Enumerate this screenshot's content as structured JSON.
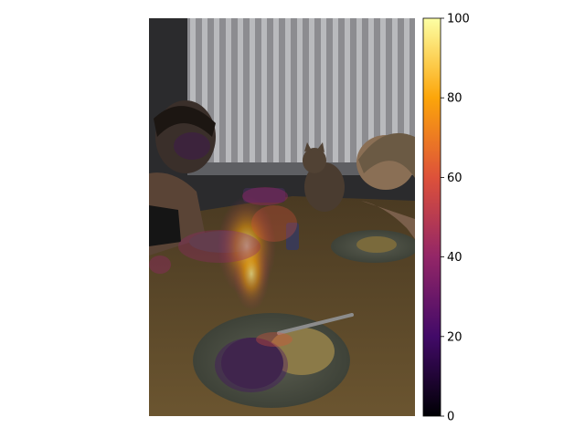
{
  "figure": {
    "kind": "photo-with-heatmap-overlay",
    "scene": "dinner-table",
    "colormap": "inferno",
    "colorbar": {
      "min": 0,
      "max": 100,
      "ticks": [
        {
          "value": 0,
          "label": "0"
        },
        {
          "value": 20,
          "label": "20"
        },
        {
          "value": 40,
          "label": "40"
        },
        {
          "value": 60,
          "label": "60"
        },
        {
          "value": 80,
          "label": "80"
        },
        {
          "value": 100,
          "label": "100"
        }
      ],
      "stops": [
        "#000004",
        "#420a68",
        "#932667",
        "#dd513a",
        "#fca50a",
        "#fcffa4"
      ]
    }
  }
}
